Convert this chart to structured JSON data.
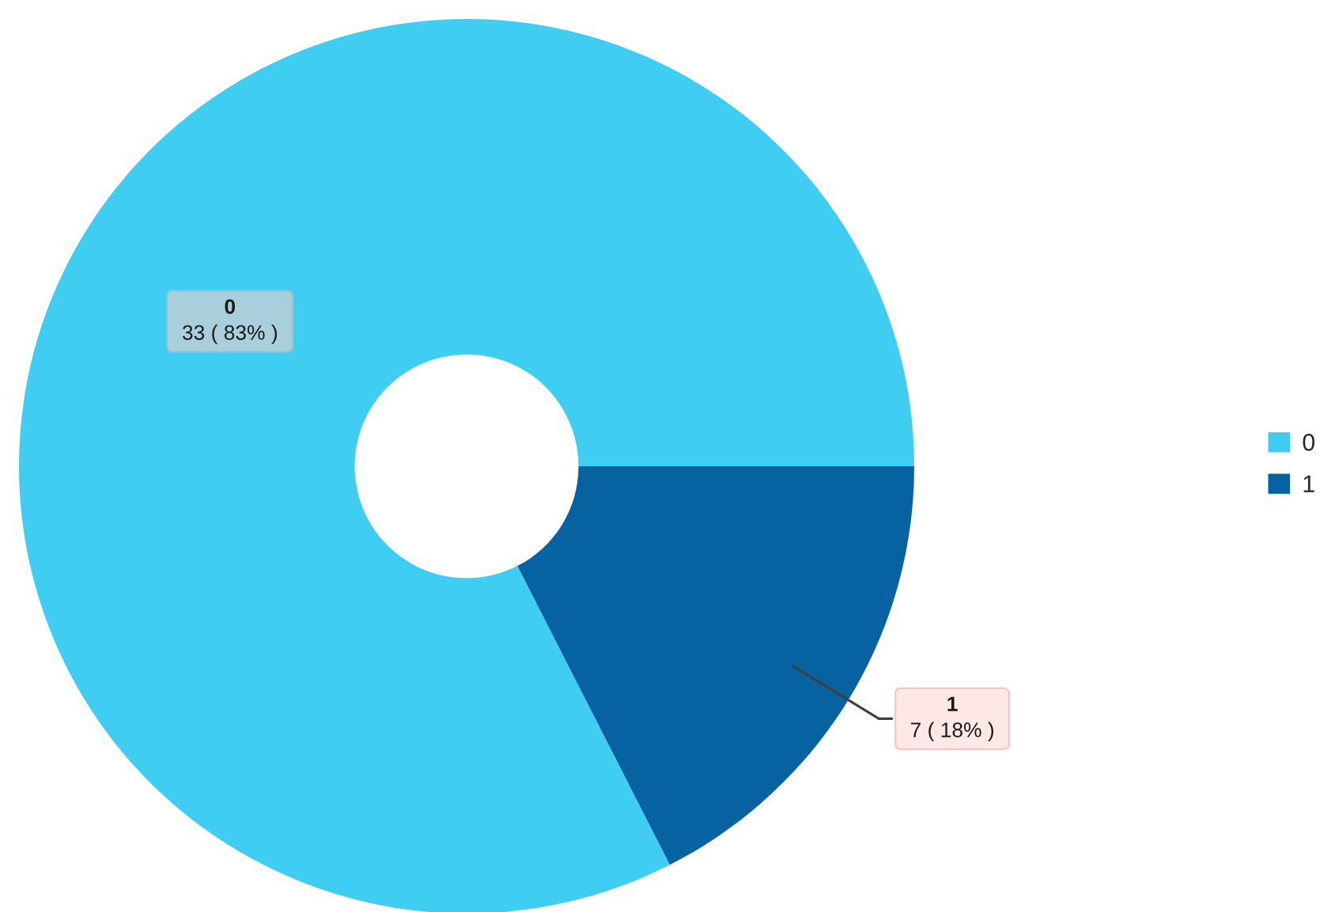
{
  "chart_data": {
    "type": "donut",
    "categories": [
      "0",
      "1"
    ],
    "values": [
      33,
      7
    ],
    "colors": [
      "#40cdf2",
      "#0662a0"
    ],
    "value_labels": [
      "33 ( 83% )",
      "7 ( 18% )"
    ],
    "legend": "right"
  }
}
